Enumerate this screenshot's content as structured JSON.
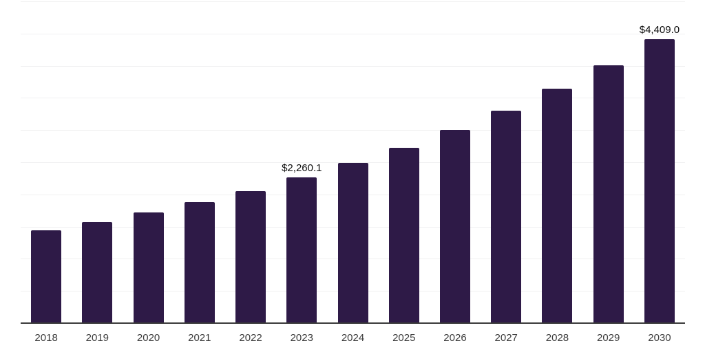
{
  "chart_data": {
    "type": "bar",
    "title": "",
    "xlabel": "",
    "ylabel": "",
    "categories": [
      "2018",
      "2019",
      "2020",
      "2021",
      "2022",
      "2023",
      "2024",
      "2025",
      "2026",
      "2027",
      "2028",
      "2029",
      "2030"
    ],
    "values": [
      1440,
      1570,
      1715,
      1885,
      2055,
      2260.1,
      2486,
      2725,
      3000,
      3305,
      3640,
      4010,
      4409
    ],
    "data_labels": {
      "2023": "$2,260.1",
      "2030": "$4,409.0"
    },
    "value_prefix": "$",
    "ylim": [
      0,
      5000
    ],
    "gridline_step": 500,
    "grid": "horizontal-only",
    "legend": "none",
    "y_axis_labels_visible": false
  },
  "colors": {
    "bar": "#2e1a47",
    "gridline": "#f0f0f1",
    "axis_line": "#3a3a3a",
    "tick_label": "#3c3c3c",
    "data_label": "#0e0e0e",
    "background": "#ffffff"
  }
}
